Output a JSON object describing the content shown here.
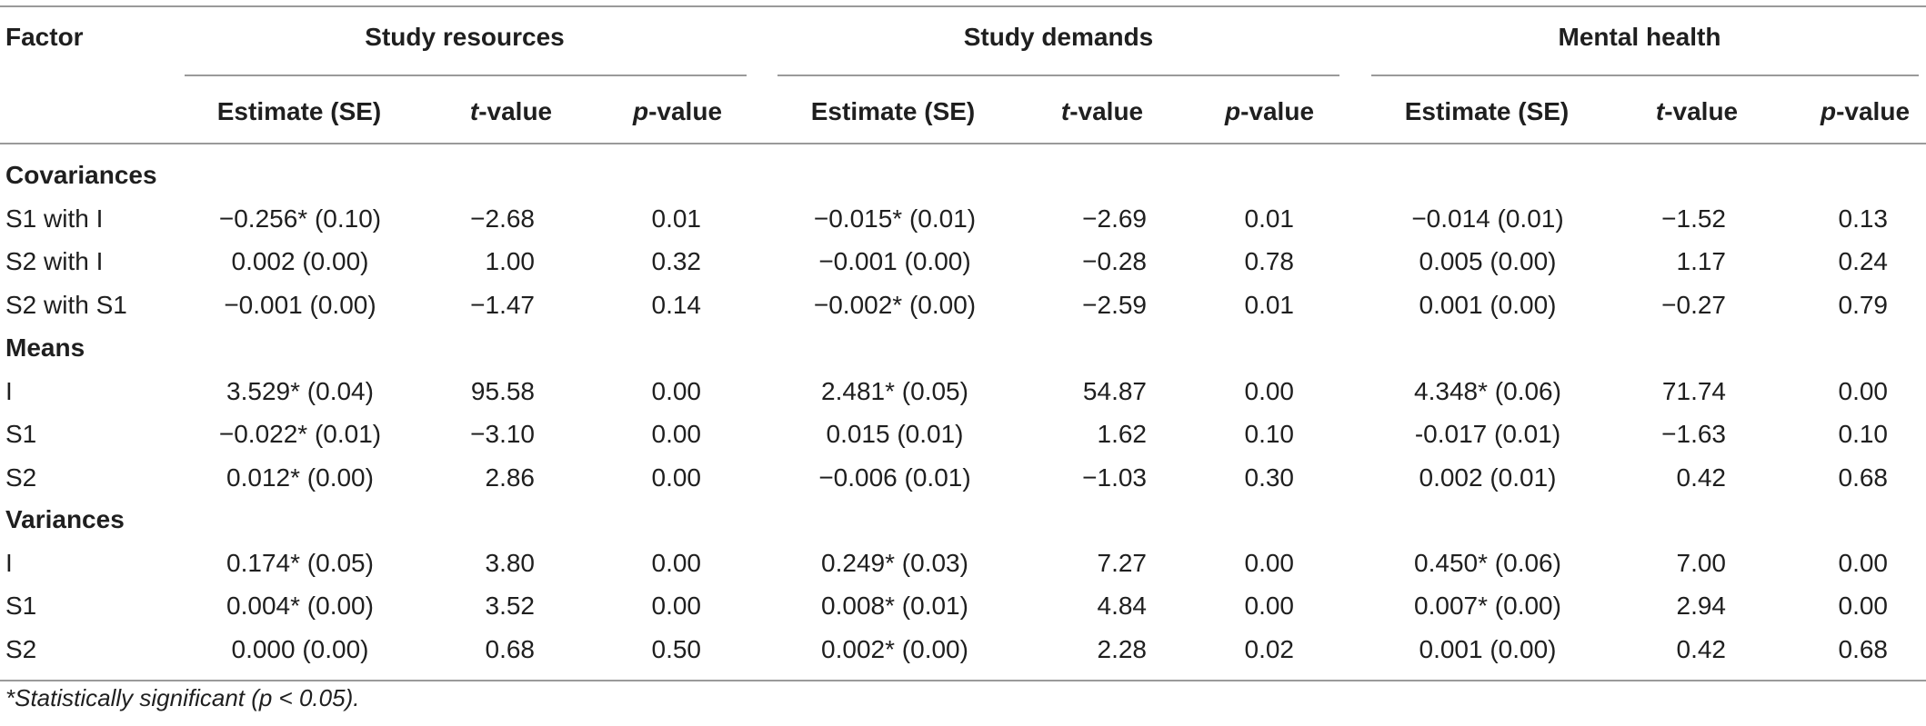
{
  "table": {
    "corner_label": "Factor",
    "groups": [
      "Study resources",
      "Study demands",
      "Mental health"
    ],
    "subheaders": [
      {
        "pre": "",
        "italic": "",
        "text": "Estimate (SE)"
      },
      {
        "pre": "",
        "italic": "t",
        "text": "-value"
      },
      {
        "pre": "",
        "italic": "p",
        "text": "-value"
      }
    ],
    "sections": [
      {
        "title": "Covariances",
        "rows": [
          {
            "label": "S1 with I",
            "cells": [
              "−0.256* (0.10)",
              "−2.68",
              "0.01",
              "−0.015* (0.01)",
              "−2.69",
              "0.01",
              "−0.014 (0.01)",
              "−1.52",
              "0.13"
            ]
          },
          {
            "label": "S2 with I",
            "cells": [
              "0.002 (0.00)",
              "1.00",
              "0.32",
              "−0.001 (0.00)",
              "−0.28",
              "0.78",
              "0.005 (0.00)",
              "1.17",
              "0.24"
            ]
          },
          {
            "label": "S2 with S1",
            "cells": [
              "−0.001 (0.00)",
              "−1.47",
              "0.14",
              "−0.002* (0.00)",
              "−2.59",
              "0.01",
              "0.001 (0.00)",
              "−0.27",
              "0.79"
            ]
          }
        ]
      },
      {
        "title": "Means",
        "rows": [
          {
            "label": "I",
            "cells": [
              "3.529* (0.04)",
              "95.58",
              "0.00",
              "2.481* (0.05)",
              "54.87",
              "0.00",
              "4.348* (0.06)",
              "71.74",
              "0.00"
            ]
          },
          {
            "label": "S1",
            "cells": [
              "−0.022* (0.01)",
              "−3.10",
              "0.00",
              "0.015 (0.01)",
              "1.62",
              "0.10",
              "-0.017 (0.01)",
              "−1.63",
              "0.10"
            ]
          },
          {
            "label": "S2",
            "cells": [
              "0.012* (0.00)",
              "2.86",
              "0.00",
              "−0.006 (0.01)",
              "−1.03",
              "0.30",
              "0.002 (0.01)",
              "0.42",
              "0.68"
            ]
          }
        ]
      },
      {
        "title": "Variances",
        "rows": [
          {
            "label": "I",
            "cells": [
              "0.174* (0.05)",
              "3.80",
              "0.00",
              "0.249* (0.03)",
              "7.27",
              "0.00",
              "0.450* (0.06)",
              "7.00",
              "0.00"
            ]
          },
          {
            "label": "S1",
            "cells": [
              "0.004* (0.00)",
              "3.52",
              "0.00",
              "0.008* (0.01)",
              "4.84",
              "0.00",
              "0.007* (0.00)",
              "2.94",
              "0.00"
            ]
          },
          {
            "label": "S2",
            "cells": [
              "0.000 (0.00)",
              "0.68",
              "0.50",
              "0.002* (0.00)",
              "2.28",
              "0.02",
              "0.001 (0.00)",
              "0.42",
              "0.68"
            ]
          }
        ]
      }
    ],
    "footnote": "*Statistically significant (p < 0.05)."
  }
}
